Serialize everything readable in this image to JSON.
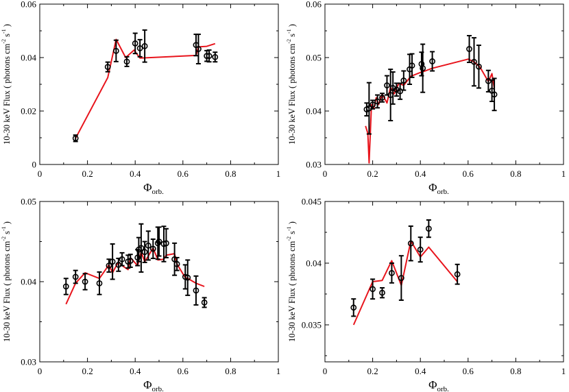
{
  "figure": {
    "layout": "2x2 grid"
  },
  "chart_data": [
    {
      "type": "scatter",
      "panel": "top-left",
      "xlabel": "Φ",
      "xlabel_sub": "orb.",
      "ylabel": "10-30 keV Flux ( photons cm",
      "ylabel_sup1": "-2",
      "ylabel_mid": " s",
      "ylabel_sup2": "-1",
      "ylabel_end": " )",
      "xlim": [
        0,
        1
      ],
      "ylim": [
        0,
        0.06
      ],
      "xticks": [
        0,
        0.2,
        0.4,
        0.6,
        0.8,
        1
      ],
      "xtick_labels": [
        "0",
        "0.2",
        "0.4",
        "0.6",
        "0.8",
        "1"
      ],
      "yticks": [
        0,
        0.02,
        0.04,
        0.06
      ],
      "ytick_labels": [
        "0",
        "0.02",
        "0.04",
        "0.06"
      ],
      "series": [
        {
          "name": "data",
          "color": "#000000",
          "marker": "open-circle",
          "points": [
            {
              "x": 0.15,
              "y": 0.0098,
              "err": 0.0012
            },
            {
              "x": 0.285,
              "y": 0.0365,
              "err": 0.0018
            },
            {
              "x": 0.32,
              "y": 0.0425,
              "err": 0.004
            },
            {
              "x": 0.365,
              "y": 0.0385,
              "err": 0.0018
            },
            {
              "x": 0.4,
              "y": 0.0453,
              "err": 0.0038
            },
            {
              "x": 0.42,
              "y": 0.0435,
              "err": 0.0032
            },
            {
              "x": 0.44,
              "y": 0.0443,
              "err": 0.006
            },
            {
              "x": 0.655,
              "y": 0.0447,
              "err": 0.004
            },
            {
              "x": 0.665,
              "y": 0.0432,
              "err": 0.0055
            },
            {
              "x": 0.7,
              "y": 0.0406,
              "err": 0.002
            },
            {
              "x": 0.71,
              "y": 0.0406,
              "err": 0.0022
            },
            {
              "x": 0.735,
              "y": 0.0402,
              "err": 0.0018
            }
          ]
        },
        {
          "name": "model",
          "color": "#e8141c",
          "line": true,
          "x": [
            0.15,
            0.285,
            0.32,
            0.36,
            0.395,
            0.42,
            0.655,
            0.665,
            0.7,
            0.735
          ],
          "y": [
            0.0098,
            0.0325,
            0.0468,
            0.04,
            0.0428,
            0.0398,
            0.0408,
            0.044,
            0.0442,
            0.0452
          ]
        }
      ]
    },
    {
      "type": "scatter",
      "panel": "top-right",
      "xlabel": "Φ",
      "xlabel_sub": "orb.",
      "ylabel": "10-30 keV Flux ( photons cm",
      "ylabel_sup1": "-2",
      "ylabel_mid": " s",
      "ylabel_sup2": "-1",
      "ylabel_end": " )",
      "xlim": [
        0,
        1
      ],
      "ylim": [
        0.03,
        0.06
      ],
      "xticks": [
        0,
        0.2,
        0.4,
        0.6,
        0.8,
        1
      ],
      "xtick_labels": [
        "0",
        "0.2",
        "0.4",
        "0.6",
        "0.8",
        "1"
      ],
      "yticks": [
        0.03,
        0.04,
        0.05,
        0.06
      ],
      "ytick_labels": [
        "0.03",
        "0.04",
        "0.05",
        "0.06"
      ],
      "series": [
        {
          "name": "data",
          "color": "#000000",
          "marker": "open-circle",
          "points": [
            {
              "x": 0.175,
              "y": 0.0403,
              "err": 0.0012
            },
            {
              "x": 0.185,
              "y": 0.0405,
              "err": 0.0048
            },
            {
              "x": 0.2,
              "y": 0.0412,
              "err": 0.0008
            },
            {
              "x": 0.22,
              "y": 0.0418,
              "err": 0.0012
            },
            {
              "x": 0.24,
              "y": 0.0425,
              "err": 0.0008
            },
            {
              "x": 0.26,
              "y": 0.0448,
              "err": 0.0018
            },
            {
              "x": 0.275,
              "y": 0.043,
              "err": 0.0048
            },
            {
              "x": 0.285,
              "y": 0.0443,
              "err": 0.003
            },
            {
              "x": 0.3,
              "y": 0.044,
              "err": 0.0012
            },
            {
              "x": 0.315,
              "y": 0.0437,
              "err": 0.0015
            },
            {
              "x": 0.33,
              "y": 0.0457,
              "err": 0.0018
            },
            {
              "x": 0.355,
              "y": 0.0478,
              "err": 0.0028
            },
            {
              "x": 0.365,
              "y": 0.0485,
              "err": 0.0022
            },
            {
              "x": 0.405,
              "y": 0.0488,
              "err": 0.0022
            },
            {
              "x": 0.41,
              "y": 0.048,
              "err": 0.0045
            },
            {
              "x": 0.45,
              "y": 0.0493,
              "err": 0.0018
            },
            {
              "x": 0.605,
              "y": 0.0516,
              "err": 0.0025
            },
            {
              "x": 0.625,
              "y": 0.0492,
              "err": 0.0045
            },
            {
              "x": 0.645,
              "y": 0.0483,
              "err": 0.004
            },
            {
              "x": 0.685,
              "y": 0.0456,
              "err": 0.002
            },
            {
              "x": 0.7,
              "y": 0.0438,
              "err": 0.002
            },
            {
              "x": 0.71,
              "y": 0.0431,
              "err": 0.003
            }
          ]
        },
        {
          "name": "model",
          "color": "#e8141c",
          "line": true,
          "x": [
            0.17,
            0.18,
            0.185,
            0.195,
            0.205,
            0.215,
            0.225,
            0.24,
            0.26,
            0.275,
            0.29,
            0.31,
            0.33,
            0.36,
            0.405,
            0.42,
            0.45,
            0.6,
            0.625,
            0.65,
            0.685,
            0.7,
            0.71
          ],
          "y": [
            0.0372,
            0.0358,
            0.0303,
            0.0412,
            0.0405,
            0.0425,
            0.0412,
            0.0432,
            0.0415,
            0.0445,
            0.0432,
            0.0452,
            0.0448,
            0.0465,
            0.0473,
            0.0475,
            0.048,
            0.0497,
            0.0492,
            0.0482,
            0.0455,
            0.047,
            0.0442
          ]
        }
      ]
    },
    {
      "type": "scatter",
      "panel": "bottom-left",
      "xlabel": "Φ",
      "xlabel_sub": "orb.",
      "ylabel": "10-30 keV Flux ( photons cm",
      "ylabel_sup1": "-2",
      "ylabel_mid": " s",
      "ylabel_sup2": "-1",
      "ylabel_end": " )",
      "xlim": [
        0,
        1
      ],
      "ylim": [
        0.03,
        0.05
      ],
      "xticks": [
        0,
        0.2,
        0.4,
        0.6,
        0.8,
        1
      ],
      "xtick_labels": [
        "0",
        "0.2",
        "0.4",
        "0.6",
        "0.8",
        "1"
      ],
      "yticks": [
        0.03,
        0.04,
        0.05
      ],
      "ytick_labels": [
        "0.03",
        "0.04",
        "0.05"
      ],
      "series": [
        {
          "name": "data",
          "color": "#000000",
          "marker": "open-circle",
          "points": [
            {
              "x": 0.11,
              "y": 0.0394,
              "err": 0.001
            },
            {
              "x": 0.15,
              "y": 0.0406,
              "err": 0.0008
            },
            {
              "x": 0.19,
              "y": 0.04,
              "err": 0.001
            },
            {
              "x": 0.25,
              "y": 0.0398,
              "err": 0.0014
            },
            {
              "x": 0.29,
              "y": 0.042,
              "err": 0.0008
            },
            {
              "x": 0.305,
              "y": 0.0425,
              "err": 0.0022
            },
            {
              "x": 0.33,
              "y": 0.0421,
              "err": 0.0008
            },
            {
              "x": 0.345,
              "y": 0.0428,
              "err": 0.0008
            },
            {
              "x": 0.37,
              "y": 0.0425,
              "err": 0.0008
            },
            {
              "x": 0.38,
              "y": 0.0426,
              "err": 0.0008
            },
            {
              "x": 0.41,
              "y": 0.043,
              "err": 0.001
            },
            {
              "x": 0.415,
              "y": 0.044,
              "err": 0.0015
            },
            {
              "x": 0.425,
              "y": 0.0442,
              "err": 0.003
            },
            {
              "x": 0.44,
              "y": 0.0437,
              "err": 0.0013
            },
            {
              "x": 0.455,
              "y": 0.0445,
              "err": 0.0018
            },
            {
              "x": 0.475,
              "y": 0.0441,
              "err": 0.0012
            },
            {
              "x": 0.495,
              "y": 0.0448,
              "err": 0.002
            },
            {
              "x": 0.5,
              "y": 0.045,
              "err": 0.0018
            },
            {
              "x": 0.52,
              "y": 0.0447,
              "err": 0.0022
            },
            {
              "x": 0.53,
              "y": 0.0448,
              "err": 0.0018
            },
            {
              "x": 0.565,
              "y": 0.0428,
              "err": 0.002
            },
            {
              "x": 0.575,
              "y": 0.0422,
              "err": 0.0008
            },
            {
              "x": 0.61,
              "y": 0.0406,
              "err": 0.0015
            },
            {
              "x": 0.62,
              "y": 0.0405,
              "err": 0.0022
            },
            {
              "x": 0.655,
              "y": 0.0389,
              "err": 0.0018
            },
            {
              "x": 0.69,
              "y": 0.0374,
              "err": 0.0006
            }
          ]
        },
        {
          "name": "model",
          "color": "#e8141c",
          "line": true,
          "x": [
            0.11,
            0.15,
            0.19,
            0.25,
            0.29,
            0.305,
            0.33,
            0.345,
            0.37,
            0.38,
            0.41,
            0.425,
            0.44,
            0.455,
            0.475,
            0.495,
            0.52,
            0.53,
            0.565,
            0.575,
            0.61,
            0.62,
            0.655,
            0.69
          ],
          "y": [
            0.0372,
            0.0398,
            0.0411,
            0.0404,
            0.0421,
            0.0411,
            0.0425,
            0.042,
            0.0415,
            0.043,
            0.042,
            0.0437,
            0.0425,
            0.0432,
            0.0442,
            0.0427,
            0.0428,
            0.0433,
            0.0435,
            0.0422,
            0.0405,
            0.0404,
            0.0398,
            0.0394
          ]
        }
      ]
    },
    {
      "type": "scatter",
      "panel": "bottom-right",
      "xlabel": "Φ",
      "xlabel_sub": "orb.",
      "ylabel": "10-30 keV Flux ( photons cm",
      "ylabel_sup1": "-2",
      "ylabel_mid": " s",
      "ylabel_sup2": "-1",
      "ylabel_end": " )",
      "xlim": [
        0,
        1
      ],
      "ylim": [
        0.032,
        0.045
      ],
      "xticks": [
        0,
        0.2,
        0.4,
        0.6,
        0.8,
        1
      ],
      "xtick_labels": [
        "0",
        "0.2",
        "0.4",
        "0.6",
        "0.8",
        "1"
      ],
      "yticks": [
        0.035,
        0.04,
        0.045
      ],
      "ytick_labels": [
        "0.035",
        "0.04",
        "0.045"
      ],
      "series": [
        {
          "name": "data",
          "color": "#000000",
          "marker": "open-circle",
          "points": [
            {
              "x": 0.12,
              "y": 0.0364,
              "err": 0.0007
            },
            {
              "x": 0.2,
              "y": 0.0379,
              "err": 0.0008
            },
            {
              "x": 0.24,
              "y": 0.0376,
              "err": 0.0004
            },
            {
              "x": 0.28,
              "y": 0.0392,
              "err": 0.0008
            },
            {
              "x": 0.32,
              "y": 0.0388,
              "err": 0.0018
            },
            {
              "x": 0.36,
              "y": 0.0416,
              "err": 0.0014
            },
            {
              "x": 0.4,
              "y": 0.0411,
              "err": 0.001
            },
            {
              "x": 0.435,
              "y": 0.0428,
              "err": 0.0007
            },
            {
              "x": 0.555,
              "y": 0.0391,
              "err": 0.0008
            }
          ]
        },
        {
          "name": "model",
          "color": "#e8141c",
          "line": true,
          "x": [
            0.12,
            0.2,
            0.24,
            0.28,
            0.32,
            0.36,
            0.4,
            0.435,
            0.555
          ],
          "y": [
            0.035,
            0.0385,
            0.0386,
            0.0402,
            0.0382,
            0.0418,
            0.0405,
            0.0413,
            0.0385
          ]
        }
      ]
    }
  ]
}
